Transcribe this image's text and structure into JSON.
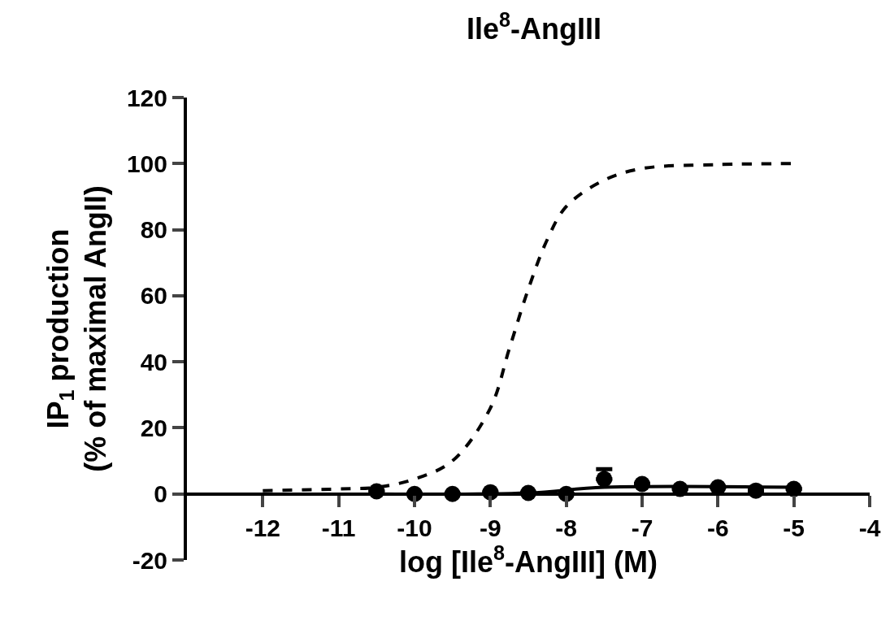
{
  "chart_data": {
    "type": "line",
    "title": "Ile$^{8}$-AngIII",
    "xlabel": "log [Ile$^{8}$-AngIII] (M)",
    "ylabel": "IP$_{1}$ production\n(% of maximal AngII)",
    "xlim": [
      -13,
      -4
    ],
    "xticks": [
      -12,
      -11,
      -10,
      -9,
      -8,
      -7,
      -6,
      -5,
      -4
    ],
    "ylim": [
      -20,
      120
    ],
    "yticks": [
      -20,
      0,
      20,
      40,
      60,
      80,
      100,
      120
    ],
    "series": [
      {
        "line_style": "dashed",
        "marker": "none",
        "color": "#000000",
        "x": [
          -12,
          -11,
          -10.5,
          -10,
          -9.5,
          -9,
          -8.75,
          -8.5,
          -8.25,
          -8,
          -7.5,
          -7,
          -6,
          -5
        ],
        "values": [
          1,
          1.5,
          2,
          4.5,
          10,
          26,
          44,
          62,
          77,
          87,
          95,
          98.5,
          99.7,
          100
        ]
      },
      {
        "line_style": "solid",
        "marker": "none",
        "color": "#000000",
        "x": [
          -10.5,
          -8.5,
          -7.5,
          -5
        ],
        "values": [
          0,
          0.3,
          2,
          2
        ]
      },
      {
        "type": "scatter",
        "marker": "circle",
        "color": "#000000",
        "x": [
          -10.5,
          -10,
          -9.5,
          -9,
          -8.5,
          -8,
          -7.5,
          -7,
          -6.5,
          -6,
          -5.5,
          -5
        ],
        "values": [
          0.8,
          0,
          0,
          0.5,
          0.3,
          0,
          4.5,
          3,
          1.5,
          2,
          1,
          1.5
        ],
        "errors": [
          null,
          null,
          null,
          null,
          null,
          null,
          3,
          null,
          null,
          null,
          null,
          null
        ]
      }
    ]
  }
}
